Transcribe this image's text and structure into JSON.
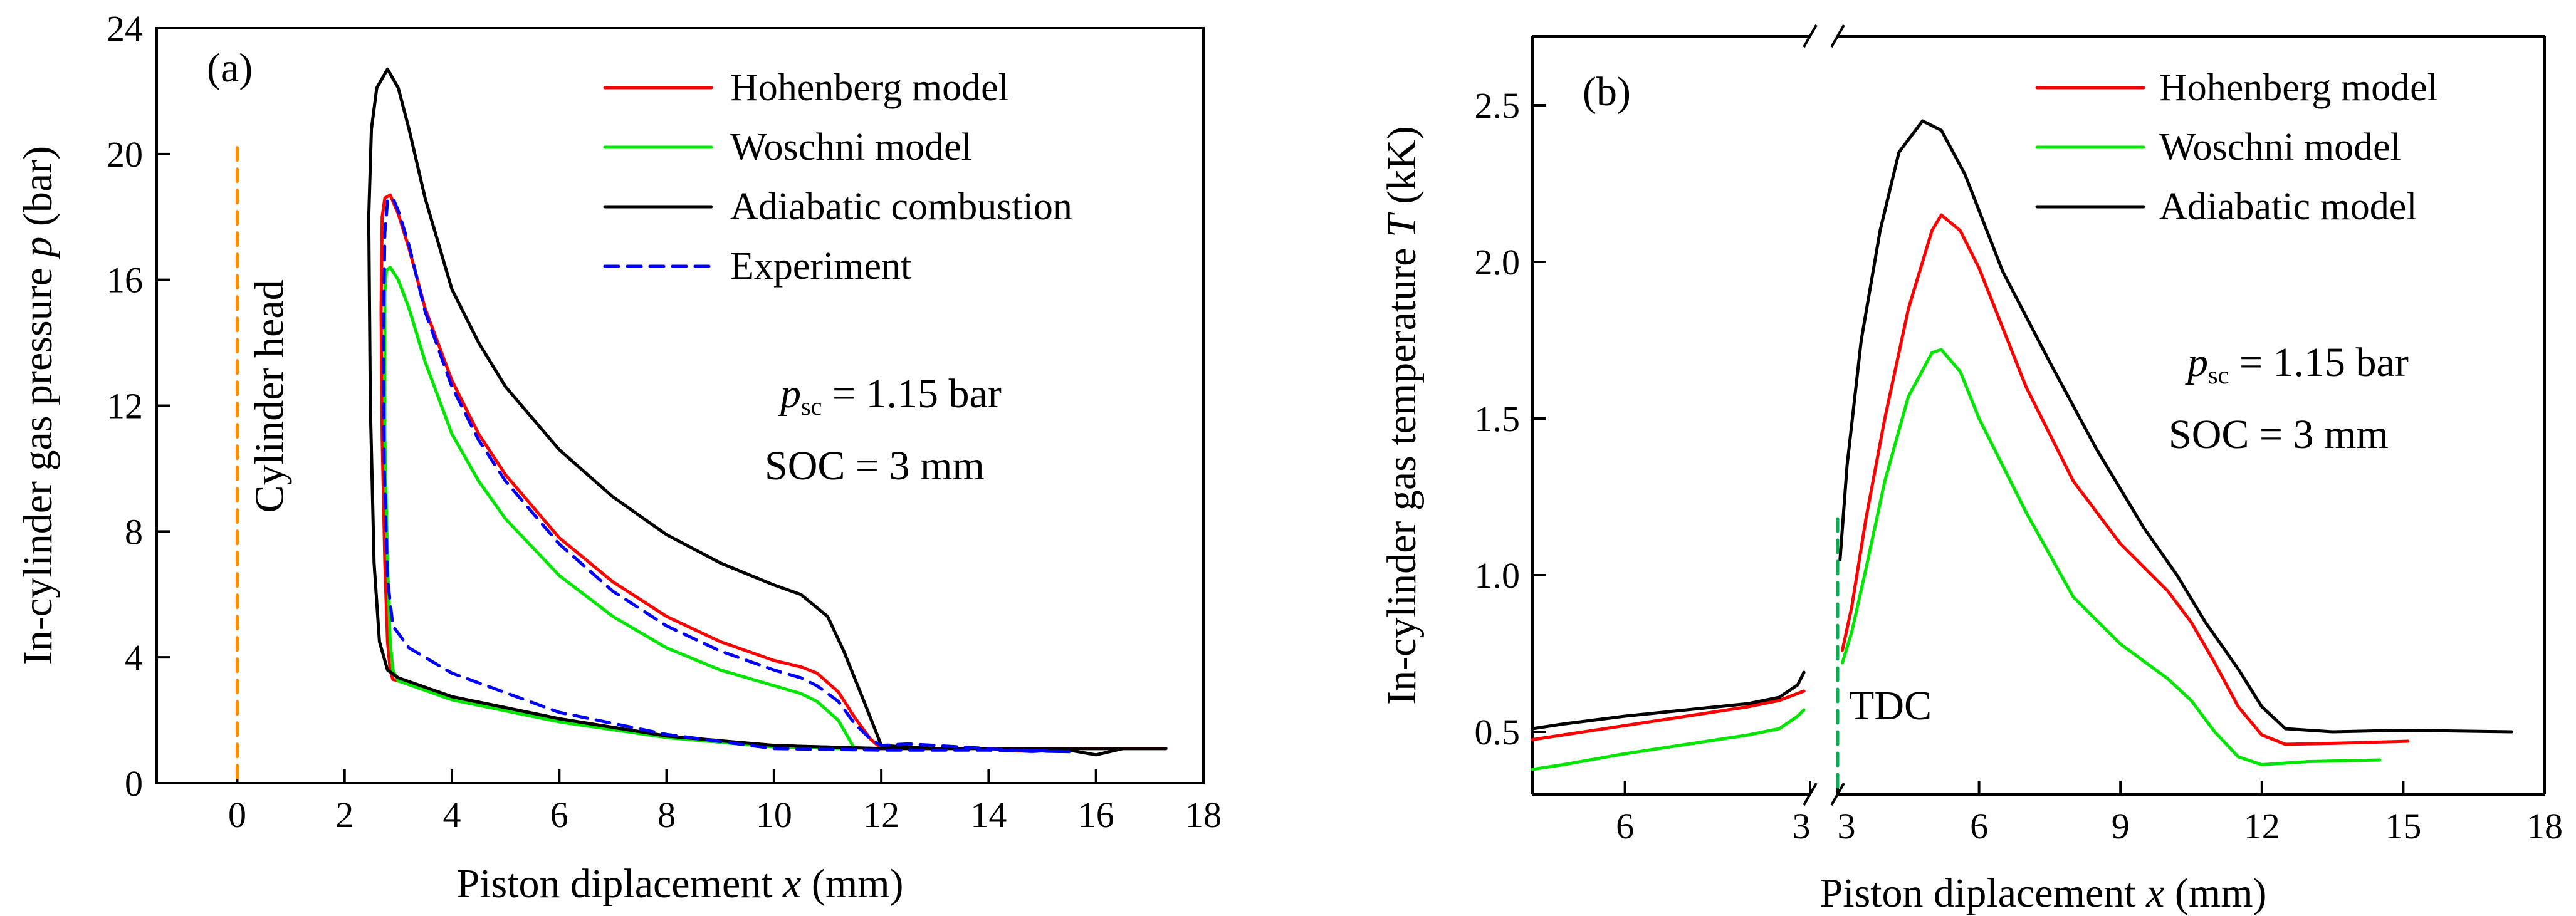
{
  "colors": {
    "hohenberg": "#ff0000",
    "woschni": "#00e600",
    "adiabatic": "#000000",
    "experiment": "#0000ff",
    "cylinder_head": "#ff8c00",
    "tdc": "#00b050"
  },
  "chart_data": [
    {
      "type": "line",
      "panel_label": "(a)",
      "xlabel_parts": [
        "Piston diplacement ",
        "x",
        " (mm)"
      ],
      "ylabel_parts": [
        "In-cylinder gas pressure ",
        "p",
        " (bar)"
      ],
      "xlim": [
        -1.5,
        18
      ],
      "ylim": [
        0,
        24
      ],
      "xticks": [
        0,
        2,
        4,
        6,
        8,
        10,
        12,
        14,
        16,
        18
      ],
      "yticks": [
        0,
        4,
        8,
        12,
        16,
        20,
        24
      ],
      "grid": false,
      "legend_position": "top-right",
      "annotations": {
        "cylinder_head": "Cylinder head",
        "psc_sym": "p",
        "psc_sub": "sc",
        "psc_value": " =  1.15 bar",
        "soc": "SOC =  3 mm"
      },
      "series": [
        {
          "name": "Hohenberg model",
          "color_key": "hohenberg",
          "dash": false,
          "points": [
            [
              17.3,
              1.1
            ],
            [
              16.5,
              1.1
            ],
            [
              15.5,
              1.1
            ],
            [
              14.8,
              1.0
            ],
            [
              14.0,
              1.1
            ],
            [
              13.0,
              1.1
            ],
            [
              12.0,
              1.1
            ],
            [
              11.8,
              1.4
            ],
            [
              11.5,
              2.1
            ],
            [
              11.2,
              2.9
            ],
            [
              10.8,
              3.5
            ],
            [
              10.5,
              3.7
            ],
            [
              10.0,
              3.9
            ],
            [
              9.0,
              4.5
            ],
            [
              8.0,
              5.3
            ],
            [
              7.0,
              6.4
            ],
            [
              6.0,
              7.8
            ],
            [
              5.0,
              9.8
            ],
            [
              4.5,
              11.1
            ],
            [
              4.0,
              12.8
            ],
            [
              3.5,
              15.1
            ],
            [
              3.2,
              17.0
            ],
            [
              3.0,
              18.1
            ],
            [
              2.85,
              18.7
            ],
            [
              2.75,
              18.6
            ],
            [
              2.7,
              18.0
            ],
            [
              2.68,
              15.0
            ],
            [
              2.7,
              11.0
            ],
            [
              2.75,
              7.0
            ],
            [
              2.8,
              4.5
            ],
            [
              2.85,
              3.6
            ],
            [
              2.9,
              3.3
            ],
            [
              3.2,
              3.15
            ],
            [
              4,
              2.75
            ],
            [
              6,
              2.05
            ],
            [
              8,
              1.5
            ],
            [
              10,
              1.2
            ],
            [
              12,
              1.1
            ],
            [
              14,
              1.1
            ],
            [
              16,
              1.1
            ],
            [
              17.3,
              1.1
            ]
          ]
        },
        {
          "name": "Woschni model",
          "color_key": "woschni",
          "dash": false,
          "points": [
            [
              11.5,
              1.1
            ],
            [
              11.2,
              2.0
            ],
            [
              10.8,
              2.6
            ],
            [
              10.5,
              2.85
            ],
            [
              10.0,
              3.1
            ],
            [
              9.0,
              3.6
            ],
            [
              8.0,
              4.3
            ],
            [
              7.0,
              5.3
            ],
            [
              6.0,
              6.6
            ],
            [
              5.0,
              8.4
            ],
            [
              4.5,
              9.6
            ],
            [
              4.0,
              11.1
            ],
            [
              3.5,
              13.4
            ],
            [
              3.2,
              15.1
            ],
            [
              3.0,
              16.0
            ],
            [
              2.85,
              16.4
            ],
            [
              2.78,
              16.3
            ],
            [
              2.75,
              15.6
            ],
            [
              2.75,
              11.0
            ],
            [
              2.8,
              7.0
            ],
            [
              2.85,
              4.5
            ],
            [
              2.9,
              3.6
            ],
            [
              3.0,
              3.25
            ],
            [
              4,
              2.65
            ],
            [
              6,
              1.95
            ],
            [
              8,
              1.45
            ],
            [
              10,
              1.15
            ],
            [
              11.5,
              1.1
            ]
          ]
        },
        {
          "name": "Adiabatic combustion",
          "color_key": "adiabatic",
          "dash": false,
          "points": [
            [
              17.3,
              1.1
            ],
            [
              16.5,
              1.1
            ],
            [
              16.0,
              0.9
            ],
            [
              15.5,
              1.05
            ],
            [
              14.5,
              1.1
            ],
            [
              13.0,
              1.1
            ],
            [
              12.0,
              1.2
            ],
            [
              11.7,
              2.5
            ],
            [
              11.3,
              4.2
            ],
            [
              11.0,
              5.3
            ],
            [
              10.5,
              6.0
            ],
            [
              10.0,
              6.3
            ],
            [
              9.0,
              7.0
            ],
            [
              8.0,
              7.9
            ],
            [
              7.0,
              9.1
            ],
            [
              6.0,
              10.6
            ],
            [
              5.0,
              12.6
            ],
            [
              4.5,
              14.0
            ],
            [
              4.0,
              15.7
            ],
            [
              3.5,
              18.6
            ],
            [
              3.2,
              20.8
            ],
            [
              3.0,
              22.1
            ],
            [
              2.8,
              22.7
            ],
            [
              2.6,
              22.1
            ],
            [
              2.5,
              20.8
            ],
            [
              2.45,
              18.0
            ],
            [
              2.48,
              12.0
            ],
            [
              2.55,
              7.0
            ],
            [
              2.65,
              4.5
            ],
            [
              2.8,
              3.6
            ],
            [
              3.0,
              3.35
            ],
            [
              4,
              2.75
            ],
            [
              6,
              2.05
            ],
            [
              8,
              1.5
            ],
            [
              10,
              1.2
            ],
            [
              12,
              1.1
            ],
            [
              14,
              1.1
            ],
            [
              16,
              1.1
            ],
            [
              17.3,
              1.1
            ]
          ]
        },
        {
          "name": "Experiment",
          "color_key": "experiment",
          "dash": true,
          "points": [
            [
              15.5,
              1.0
            ],
            [
              14.5,
              1.05
            ],
            [
              13.5,
              1.15
            ],
            [
              12.5,
              1.25
            ],
            [
              12.0,
              1.2
            ],
            [
              11.8,
              1.4
            ],
            [
              11.5,
              1.9
            ],
            [
              11.2,
              2.6
            ],
            [
              10.8,
              3.1
            ],
            [
              10.5,
              3.35
            ],
            [
              10.0,
              3.6
            ],
            [
              9.0,
              4.2
            ],
            [
              8.0,
              5.0
            ],
            [
              7.0,
              6.1
            ],
            [
              6.0,
              7.6
            ],
            [
              5.0,
              9.6
            ],
            [
              4.5,
              10.9
            ],
            [
              4.0,
              12.6
            ],
            [
              3.5,
              15.0
            ],
            [
              3.2,
              17.1
            ],
            [
              3.0,
              18.2
            ],
            [
              2.9,
              18.6
            ],
            [
              2.8,
              18.5
            ],
            [
              2.75,
              17.5
            ],
            [
              2.72,
              14.0
            ],
            [
              2.74,
              10.0
            ],
            [
              2.8,
              6.5
            ],
            [
              2.9,
              5.0
            ],
            [
              3.2,
              4.3
            ],
            [
              4,
              3.5
            ],
            [
              6,
              2.25
            ],
            [
              8,
              1.55
            ],
            [
              10,
              1.1
            ],
            [
              12,
              1.05
            ],
            [
              14,
              1.05
            ],
            [
              15.5,
              1.0
            ]
          ]
        }
      ]
    },
    {
      "type": "line",
      "panel_label": "(b)",
      "xlabel_parts": [
        "Piston diplacement ",
        "x",
        " (mm)"
      ],
      "ylabel_parts": [
        "In-cylinder gas temperature ",
        "T",
        " (kK)"
      ],
      "broken_x_axis": true,
      "x_segments": [
        {
          "name": "compression",
          "xlim": [
            7.5,
            3
          ],
          "xticks": [
            6,
            3
          ]
        },
        {
          "name": "expansion",
          "xlim": [
            3,
            18
          ],
          "xticks": [
            3,
            6,
            9,
            12,
            15,
            18
          ]
        }
      ],
      "ylim": [
        0.3,
        2.72
      ],
      "yticks": [
        0.5,
        1.0,
        1.5,
        2.0,
        2.5
      ],
      "grid": false,
      "legend_position": "top-right",
      "annotations": {
        "tdc": "TDC",
        "psc_sym": "p",
        "psc_sub": "sc",
        "psc_value": " =  1.15 bar",
        "soc": "SOC =  3 mm"
      },
      "series": [
        {
          "name": "Hohenberg model",
          "color_key": "hohenberg",
          "compression": [
            [
              7.5,
              0.475
            ],
            [
              7,
              0.49
            ],
            [
              6,
              0.52
            ],
            [
              5,
              0.55
            ],
            [
              4,
              0.58
            ],
            [
              3.5,
              0.6
            ],
            [
              3.1,
              0.63
            ]
          ],
          "expansion": [
            [
              3.1,
              0.76
            ],
            [
              3.3,
              0.9
            ],
            [
              3.6,
              1.18
            ],
            [
              4.0,
              1.5
            ],
            [
              4.5,
              1.85
            ],
            [
              5.0,
              2.1
            ],
            [
              5.2,
              2.15
            ],
            [
              5.6,
              2.1
            ],
            [
              6.0,
              1.98
            ],
            [
              7.0,
              1.6
            ],
            [
              8.0,
              1.3
            ],
            [
              9.0,
              1.1
            ],
            [
              10.0,
              0.95
            ],
            [
              10.5,
              0.85
            ],
            [
              11.0,
              0.72
            ],
            [
              11.5,
              0.58
            ],
            [
              12.0,
              0.49
            ],
            [
              12.5,
              0.46
            ],
            [
              14.0,
              0.465
            ],
            [
              15.1,
              0.47
            ]
          ]
        },
        {
          "name": "Woschni model",
          "color_key": "woschni",
          "compression": [
            [
              7.5,
              0.38
            ],
            [
              7,
              0.395
            ],
            [
              6,
              0.43
            ],
            [
              5,
              0.46
            ],
            [
              4,
              0.49
            ],
            [
              3.5,
              0.51
            ],
            [
              3.2,
              0.55
            ],
            [
              3.1,
              0.57
            ]
          ],
          "expansion": [
            [
              3.1,
              0.72
            ],
            [
              3.3,
              0.82
            ],
            [
              3.6,
              1.02
            ],
            [
              4.0,
              1.3
            ],
            [
              4.5,
              1.57
            ],
            [
              5.0,
              1.71
            ],
            [
              5.2,
              1.72
            ],
            [
              5.6,
              1.65
            ],
            [
              6.0,
              1.5
            ],
            [
              7.0,
              1.2
            ],
            [
              8.0,
              0.93
            ],
            [
              9.0,
              0.78
            ],
            [
              10.0,
              0.67
            ],
            [
              10.5,
              0.6
            ],
            [
              11.0,
              0.5
            ],
            [
              11.5,
              0.42
            ],
            [
              12.0,
              0.395
            ],
            [
              13.0,
              0.405
            ],
            [
              14.5,
              0.41
            ]
          ]
        },
        {
          "name": "Adiabatic model",
          "color_key": "adiabatic",
          "compression": [
            [
              7.5,
              0.51
            ],
            [
              7,
              0.525
            ],
            [
              6,
              0.55
            ],
            [
              5,
              0.57
            ],
            [
              4,
              0.59
            ],
            [
              3.5,
              0.61
            ],
            [
              3.2,
              0.65
            ],
            [
              3.1,
              0.69
            ]
          ],
          "expansion": [
            [
              3.05,
              1.05
            ],
            [
              3.2,
              1.35
            ],
            [
              3.5,
              1.75
            ],
            [
              3.9,
              2.1
            ],
            [
              4.3,
              2.35
            ],
            [
              4.8,
              2.45
            ],
            [
              5.2,
              2.42
            ],
            [
              5.7,
              2.28
            ],
            [
              6.5,
              1.97
            ],
            [
              7.5,
              1.68
            ],
            [
              8.5,
              1.4
            ],
            [
              9.5,
              1.15
            ],
            [
              10.2,
              1.0
            ],
            [
              10.8,
              0.85
            ],
            [
              11.5,
              0.7
            ],
            [
              12.0,
              0.58
            ],
            [
              12.5,
              0.51
            ],
            [
              13.5,
              0.5
            ],
            [
              15.0,
              0.505
            ],
            [
              17.3,
              0.5
            ]
          ]
        }
      ]
    }
  ]
}
